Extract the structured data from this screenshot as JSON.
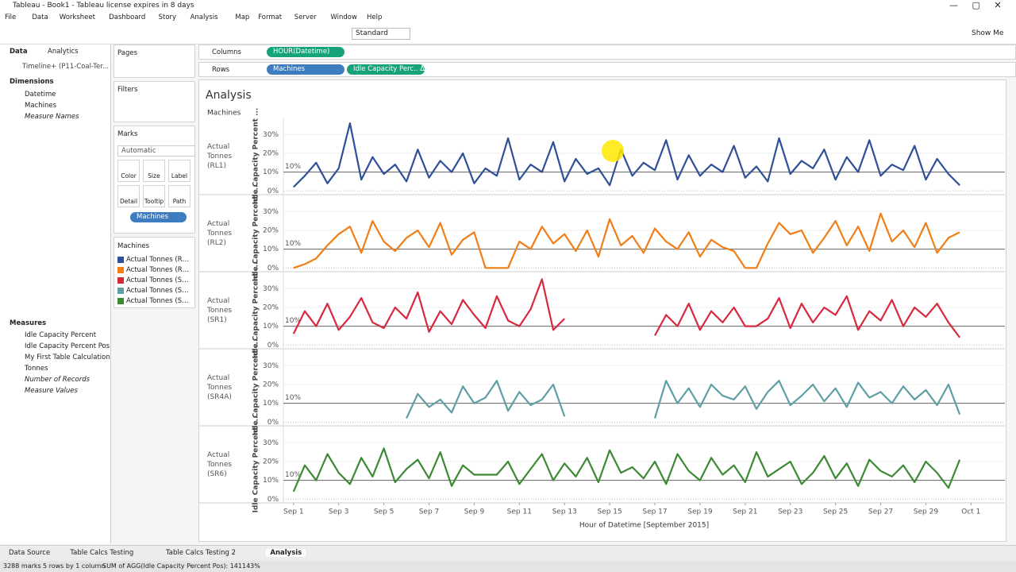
{
  "window": {
    "title": "Tableau - Book1 - Tableau license expires in 8 days",
    "menu": [
      "File",
      "Data",
      "Worksheet",
      "Dashboard",
      "Story",
      "Analysis",
      "Map",
      "Format",
      "Server",
      "Window",
      "Help"
    ]
  },
  "toolbar": {
    "fit": "Standard",
    "show_me": "Show Me"
  },
  "data_pane": {
    "tabs": [
      "Data",
      "Analytics"
    ],
    "source": "Timeline+ (P11-Coal-Ter...",
    "dimensions_title": "Dimensions",
    "dimensions": [
      "Datetime",
      "Machines",
      "Measure Names"
    ],
    "measures_title": "Measures",
    "measures": [
      "Idle Capacity Percent",
      "Idle Capacity Percent Pos",
      "My First Table Calculation",
      "Tonnes",
      "Number of Records",
      "Measure Values"
    ]
  },
  "cards": {
    "pages": "Pages",
    "filters": "Filters",
    "marks": "Marks",
    "mark_type": "Automatic",
    "mark_buttons": [
      "Color",
      "Size",
      "Label",
      "Detail",
      "Tooltip",
      "Path"
    ],
    "mark_pill": "Machines",
    "legend_title": "Machines"
  },
  "shelves": {
    "columns": "Columns",
    "columns_pills": [
      "HOUR(Datetime)"
    ],
    "rows": "Rows",
    "rows_pills": [
      "Machines",
      "Idle Capacity Perc.. Δ"
    ]
  },
  "sheet_tabs": [
    "Data Source",
    "Table Calcs Testing",
    "Table Calcs Testing 2",
    "Analysis"
  ],
  "status": [
    "3288 marks",
    "5 rows by 1 column",
    "SUM of AGG(Idle Capacity Percent Pos): 141143%"
  ],
  "chart_data": {
    "type": "line",
    "title": "Analysis",
    "row_header": "Machines",
    "y_label": "Idle Capacity Percent ...",
    "x_label": "Hour of Datetime [September 2015]",
    "x": [
      1,
      1.5,
      2,
      2.5,
      3,
      3.5,
      4,
      4.5,
      5,
      5.5,
      6,
      6.5,
      7,
      7.5,
      8,
      8.5,
      9,
      9.5,
      10,
      10.5,
      11,
      11.5,
      12,
      12.5,
      13,
      13.5,
      14,
      14.5,
      15,
      15.5,
      16,
      16.5,
      17,
      17.5,
      18,
      18.5,
      19,
      19.5,
      20,
      20.5,
      21,
      21.5,
      22,
      22.5,
      23,
      23.5,
      24,
      24.5,
      25,
      25.5,
      26,
      26.5,
      27,
      27.5,
      28,
      28.5,
      29,
      29.5,
      30,
      30.5
    ],
    "xlim": [
      0.55,
      32.5
    ],
    "xticks": [
      {
        "value": 1,
        "label": "Sep 1"
      },
      {
        "value": 3,
        "label": "Sep 3"
      },
      {
        "value": 5,
        "label": "Sep 5"
      },
      {
        "value": 7,
        "label": "Sep 7"
      },
      {
        "value": 9,
        "label": "Sep 9"
      },
      {
        "value": 11,
        "label": "Sep 11"
      },
      {
        "value": 13,
        "label": "Sep 13"
      },
      {
        "value": 15,
        "label": "Sep 15"
      },
      {
        "value": 17,
        "label": "Sep 17"
      },
      {
        "value": 19,
        "label": "Sep 19"
      },
      {
        "value": 21,
        "label": "Sep 21"
      },
      {
        "value": 23,
        "label": "Sep 23"
      },
      {
        "value": 25,
        "label": "Sep 25"
      },
      {
        "value": 27,
        "label": "Sep 27"
      },
      {
        "value": 29,
        "label": "Sep 29"
      },
      {
        "value": 31,
        "label": "Oct 1"
      }
    ],
    "ylim": [
      -2,
      39
    ],
    "yticks": [
      {
        "value": 0,
        "label": "0%"
      },
      {
        "value": 10,
        "label": "10%"
      },
      {
        "value": 20,
        "label": "20%"
      },
      {
        "value": 30,
        "label": "30%"
      }
    ],
    "reference_line": {
      "value": 10,
      "label": "10%"
    },
    "grid": true,
    "series": [
      {
        "name": "Actual Tonnes (RL1)",
        "color": "#2f4f98",
        "values": [
          2,
          8,
          15,
          4,
          12,
          36,
          6,
          18,
          9,
          14,
          5,
          22,
          7,
          16,
          10,
          20,
          4,
          12,
          8,
          28,
          6,
          14,
          10,
          26,
          5,
          17,
          9,
          12,
          3,
          22,
          8,
          15,
          11,
          27,
          6,
          19,
          8,
          14,
          10,
          24,
          7,
          13,
          5,
          28,
          9,
          16,
          12,
          22,
          6,
          18,
          10,
          27,
          8,
          14,
          11,
          24,
          6,
          17,
          9,
          3
        ]
      },
      {
        "name": "Actual Tonnes (RL2)",
        "color": "#f07d15",
        "values": [
          0,
          2,
          5,
          12,
          18,
          22,
          8,
          25,
          14,
          9,
          16,
          20,
          11,
          24,
          7,
          15,
          19,
          0,
          0,
          0,
          14,
          10,
          22,
          13,
          18,
          9,
          20,
          6,
          26,
          12,
          17,
          8,
          21,
          14,
          10,
          19,
          6,
          15,
          11,
          9,
          0,
          0,
          13,
          24,
          18,
          20,
          8,
          16,
          25,
          12,
          22,
          9,
          29,
          14,
          20,
          11,
          24,
          8,
          16,
          19
        ]
      },
      {
        "name": "Actual Tonnes (SR1)",
        "color": "#d7283e",
        "values": [
          6,
          18,
          10,
          22,
          8,
          15,
          25,
          12,
          9,
          20,
          14,
          28,
          7,
          18,
          11,
          24,
          16,
          9,
          26,
          13,
          10,
          19,
          35,
          8,
          14,
          null,
          null,
          null,
          null,
          null,
          null,
          null,
          5,
          16,
          10,
          22,
          8,
          18,
          12,
          20,
          10,
          10,
          14,
          25,
          9,
          22,
          12,
          20,
          16,
          26,
          8,
          18,
          13,
          24,
          10,
          20,
          15,
          22,
          12,
          4
        ]
      },
      {
        "name": "Actual Tonnes (SR4A)",
        "color": "#5e9fa6",
        "values": [
          null,
          null,
          null,
          null,
          null,
          null,
          null,
          null,
          null,
          null,
          2,
          15,
          8,
          12,
          5,
          19,
          10,
          13,
          22,
          6,
          16,
          9,
          12,
          20,
          3,
          null,
          null,
          null,
          null,
          null,
          null,
          null,
          2,
          22,
          10,
          18,
          8,
          20,
          14,
          12,
          19,
          7,
          16,
          22,
          9,
          14,
          20,
          11,
          18,
          8,
          21,
          13,
          16,
          10,
          19,
          12,
          17,
          9,
          20,
          4
        ]
      },
      {
        "name": "Actual Tonnes (SR6)",
        "color": "#3b8a33",
        "values": [
          4,
          18,
          10,
          24,
          14,
          8,
          22,
          12,
          27,
          9,
          16,
          21,
          11,
          25,
          7,
          18,
          13,
          13,
          13,
          20,
          8,
          16,
          24,
          10,
          19,
          12,
          22,
          9,
          26,
          14,
          17,
          11,
          20,
          8,
          24,
          15,
          10,
          22,
          13,
          18,
          9,
          25,
          12,
          16,
          20,
          8,
          14,
          23,
          11,
          19,
          7,
          21,
          15,
          12,
          18,
          9,
          20,
          14,
          6,
          21
        ]
      }
    ]
  }
}
